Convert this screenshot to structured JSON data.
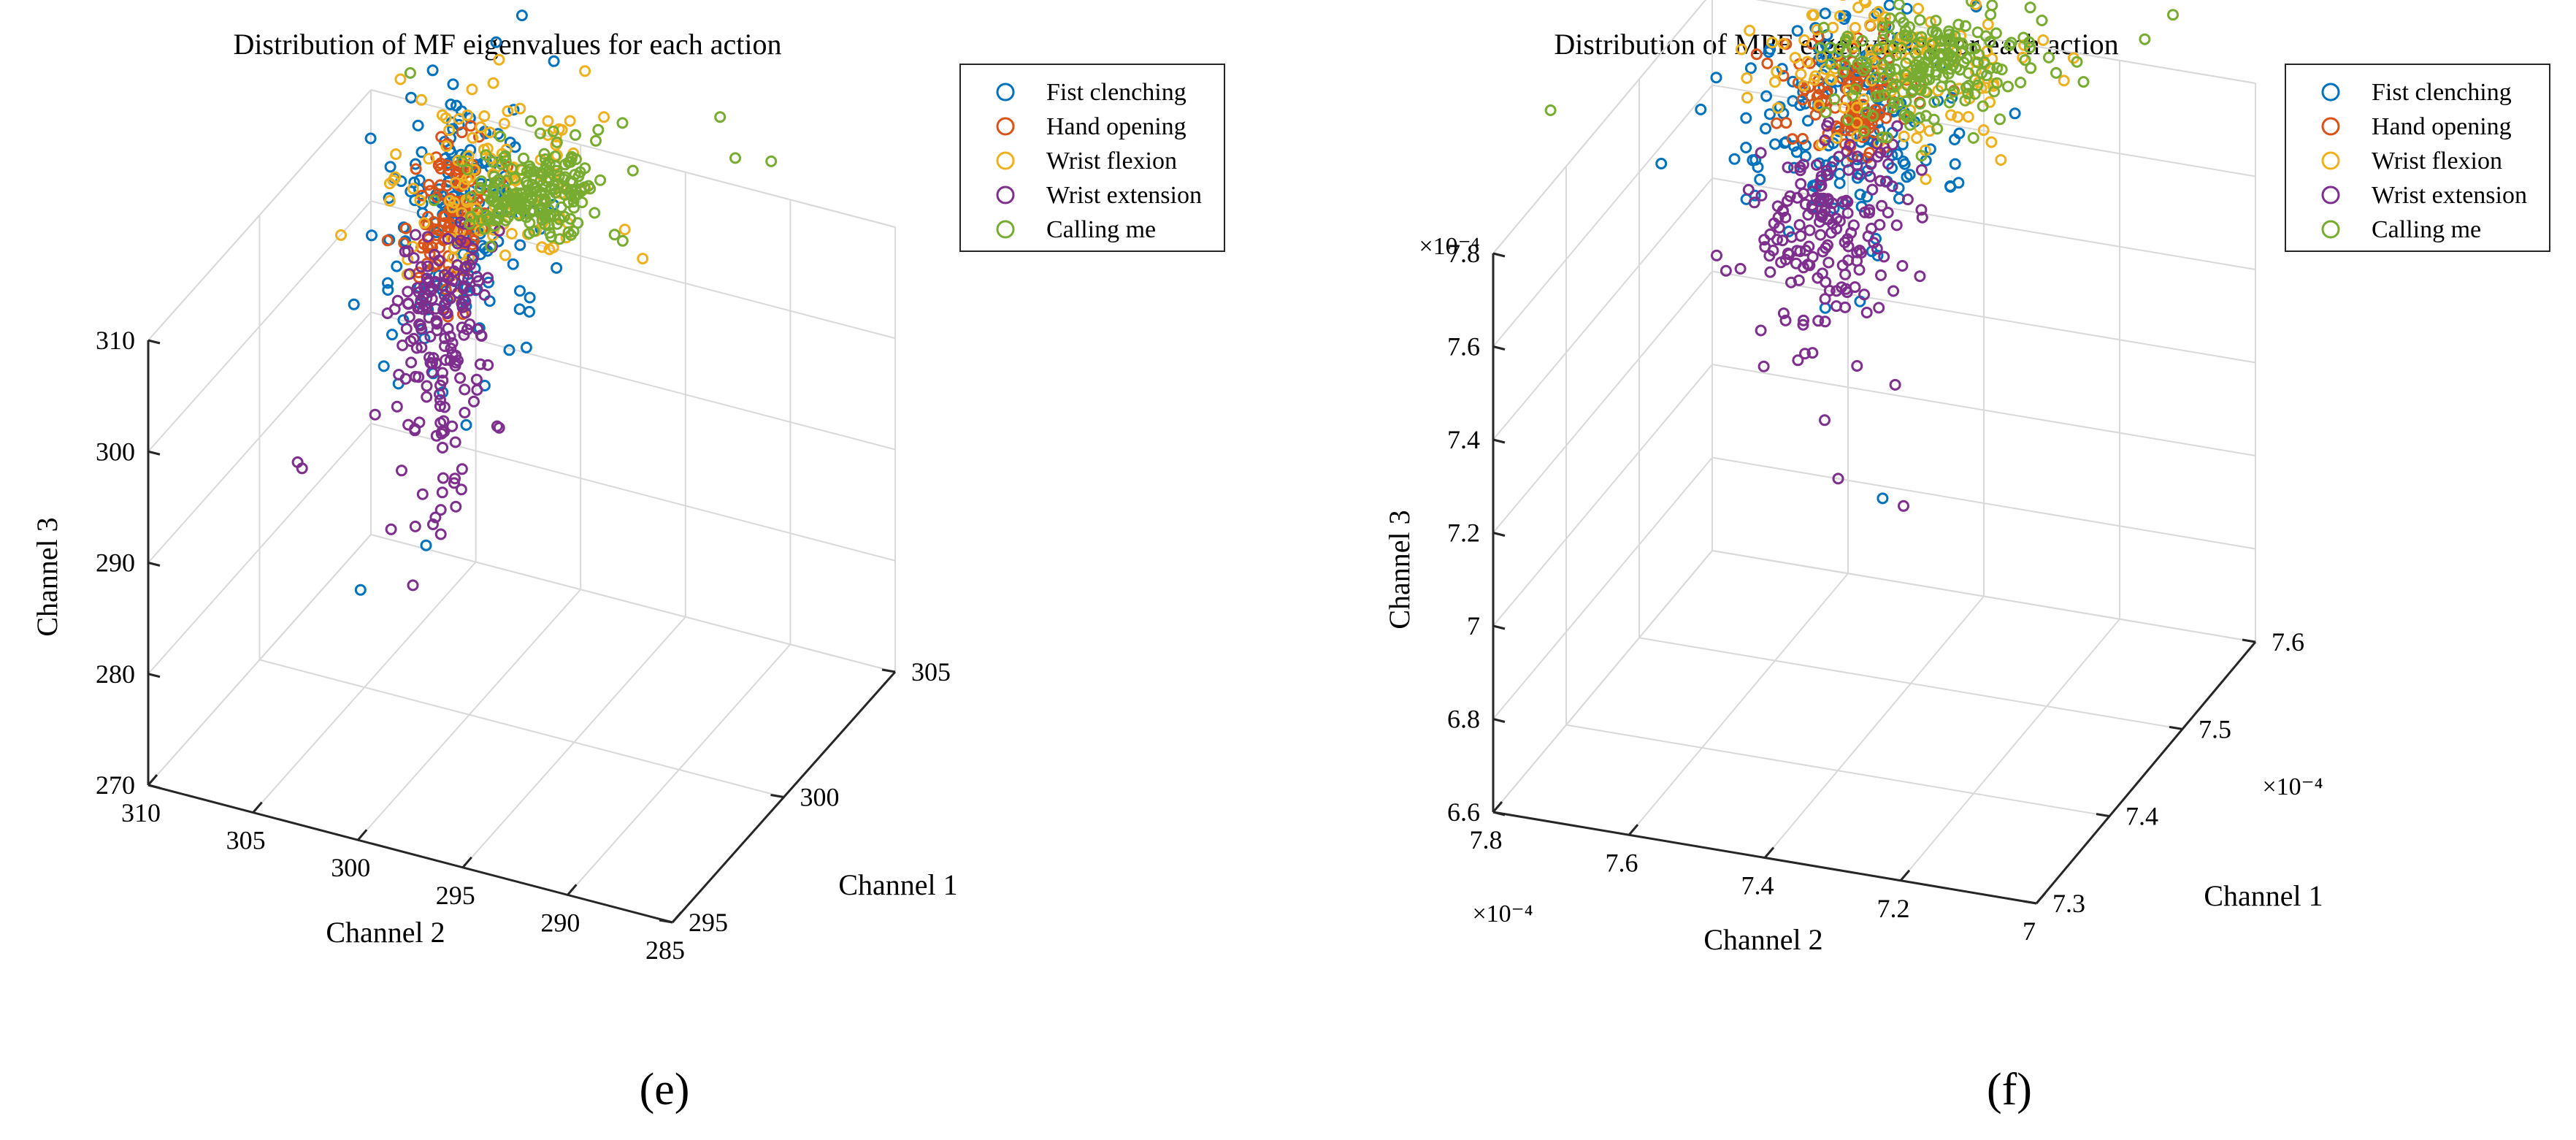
{
  "panel_labels": {
    "e": "(e)",
    "f": "(f)"
  },
  "series_colors": {
    "Fist clenching": "#0072BD",
    "Hand opening": "#D95319",
    "Wrist flexion": "#EDB120",
    "Wrist extension": "#7E2F8E",
    "Calling me": "#77AC30"
  },
  "chart_data": [
    {
      "type": "scatter",
      "title": "Distribution of MF eigenvalues for each action",
      "xlabel": "Channel 2",
      "ylabel": "Channel 1",
      "zlabel": "Channel 3",
      "x_ticks": [
        "310",
        "305",
        "300",
        "295",
        "290",
        "285"
      ],
      "y_ticks": [
        "295",
        "300",
        "305"
      ],
      "z_ticks": [
        "270",
        "280",
        "290",
        "300",
        "310"
      ],
      "xlim": [
        285,
        310
      ],
      "ylim": [
        295,
        305
      ],
      "zlim": [
        270,
        310
      ],
      "legend": [
        "Fist clenching",
        "Hand opening",
        "Wrist flexion",
        "Wrist extension",
        "Calling me"
      ],
      "series": [
        {
          "name": "Fist clenching",
          "center": [
            300.6,
            300.2,
            313
          ],
          "spread": [
            1.6,
            1.1,
            7
          ],
          "count": 170
        },
        {
          "name": "Hand opening",
          "center": [
            300.8,
            300.1,
            315
          ],
          "spread": [
            0.8,
            0.6,
            3
          ],
          "count": 120
        },
        {
          "name": "Wrist flexion",
          "center": [
            299.5,
            300.8,
            316
          ],
          "spread": [
            2.2,
            1.6,
            2.2
          ],
          "count": 120
        },
        {
          "name": "Wrist extension",
          "center": [
            301.3,
            300.0,
            306
          ],
          "spread": [
            0.9,
            0.7,
            9
          ],
          "count": 180
        },
        {
          "name": "Calling me",
          "center": [
            298.0,
            300.9,
            316
          ],
          "spread": [
            1.4,
            0.8,
            1.3
          ],
          "count": 200
        }
      ],
      "outliers": [
        {
          "name": "Calling me",
          "points": [
            [
              292.5,
              304.2,
              318
            ],
            [
              290.5,
              303.0,
              318
            ],
            [
              289.0,
              303.2,
              318
            ],
            [
              306.0,
              303.0,
              318
            ]
          ]
        },
        {
          "name": "Wrist extension",
          "points": [
            [
              305.0,
              297.0,
              297
            ],
            [
              305.0,
              297.2,
              296
            ]
          ]
        },
        {
          "name": "Fist clenching",
          "points": [
            [
              301.0,
              299.0,
              287
            ],
            [
              302.0,
              297.0,
              287
            ]
          ]
        }
      ]
    },
    {
      "type": "scatter",
      "title": "Distribution of MPF eigenvalues for each action",
      "xlabel": "Channel 2",
      "ylabel": "Channel 1",
      "zlabel": "Channel 3",
      "x_ticks": [
        "7.8",
        "7.6",
        "7.4",
        "7.2",
        "7"
      ],
      "y_ticks": [
        "7.3",
        "7.4",
        "7.5",
        "7.6"
      ],
      "z_ticks": [
        "6.6",
        "6.8",
        "7",
        "7.2",
        "7.4",
        "7.6",
        "7.8"
      ],
      "x_exponent": "×10⁻⁴",
      "y_exponent": "×10⁻⁴",
      "z_exponent": "×10⁻⁴",
      "xlim": [
        7.0,
        7.8
      ],
      "ylim": [
        7.3,
        7.6
      ],
      "zlim": [
        6.6,
        7.8
      ],
      "legend": [
        "Fist clenching",
        "Hand opening",
        "Wrist flexion",
        "Wrist extension",
        "Calling me"
      ],
      "series": [
        {
          "name": "Fist clenching",
          "center": [
            7.45,
            7.46,
            7.88
          ],
          "spread": [
            0.08,
            0.035,
            0.12
          ],
          "count": 170
        },
        {
          "name": "Hand opening",
          "center": [
            7.44,
            7.45,
            7.93
          ],
          "spread": [
            0.04,
            0.02,
            0.05
          ],
          "count": 120
        },
        {
          "name": "Wrist flexion",
          "center": [
            7.4,
            7.48,
            7.95
          ],
          "spread": [
            0.1,
            0.045,
            0.05
          ],
          "count": 120
        },
        {
          "name": "Wrist extension",
          "center": [
            7.47,
            7.45,
            7.72
          ],
          "spread": [
            0.05,
            0.025,
            0.18
          ],
          "count": 180
        },
        {
          "name": "Calling me",
          "center": [
            7.36,
            7.49,
            7.95
          ],
          "spread": [
            0.07,
            0.03,
            0.03
          ],
          "count": 200
        }
      ],
      "outliers": [
        {
          "name": "Calling me",
          "points": [
            [
              7.1,
              7.58,
              7.96
            ],
            [
              7.78,
              7.36,
              8.0
            ],
            [
              7.12,
              7.56,
              7.94
            ]
          ]
        },
        {
          "name": "Fist clenching",
          "points": [
            [
              7.42,
              7.48,
              7.03
            ],
            [
              7.66,
              7.4,
              7.84
            ]
          ]
        },
        {
          "name": "Wrist extension",
          "points": [
            [
              7.4,
              7.49,
              7.0
            ],
            [
              7.6,
              7.42,
              7.62
            ]
          ]
        }
      ]
    }
  ]
}
